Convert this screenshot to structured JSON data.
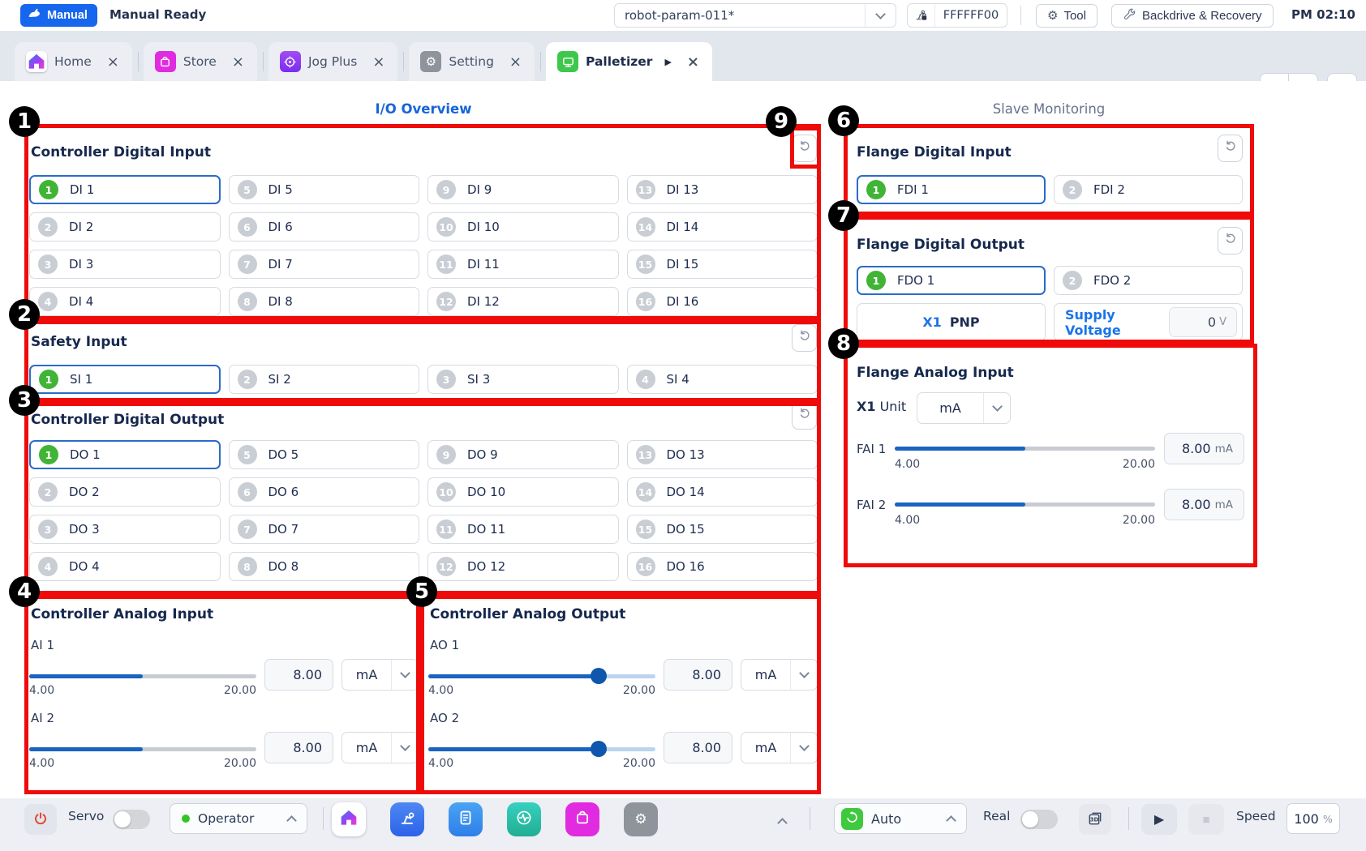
{
  "topbar": {
    "mode": "Manual",
    "status": "Manual Ready",
    "param": "robot-param-011*",
    "device_id": "FFFFFF00",
    "tool": "Tool",
    "backdrive": "Backdrive & Recovery",
    "time": "PM 02:10"
  },
  "tabs": [
    {
      "label": "Home",
      "icon": "home",
      "active": false
    },
    {
      "label": "Store",
      "icon": "store",
      "active": false
    },
    {
      "label": "Jog Plus",
      "icon": "jog",
      "active": false
    },
    {
      "label": "Setting",
      "icon": "gear",
      "active": false
    },
    {
      "label": "Palletizer",
      "icon": "palletizer",
      "active": true
    }
  ],
  "io_overview": {
    "title": "I/O Overview",
    "digital_input": {
      "title": "Controller Digital Input",
      "items": [
        {
          "num": "1",
          "label": "DI 1",
          "on": true,
          "selected": true
        },
        {
          "num": "2",
          "label": "DI 2",
          "on": false,
          "selected": false
        },
        {
          "num": "3",
          "label": "DI 3",
          "on": false,
          "selected": false
        },
        {
          "num": "4",
          "label": "DI 4",
          "on": false,
          "selected": false
        },
        {
          "num": "5",
          "label": "DI 5",
          "on": false,
          "selected": false
        },
        {
          "num": "6",
          "label": "DI 6",
          "on": false,
          "selected": false
        },
        {
          "num": "7",
          "label": "DI 7",
          "on": false,
          "selected": false
        },
        {
          "num": "8",
          "label": "DI 8",
          "on": false,
          "selected": false
        },
        {
          "num": "9",
          "label": "DI 9",
          "on": false,
          "selected": false
        },
        {
          "num": "10",
          "label": "DI 10",
          "on": false,
          "selected": false
        },
        {
          "num": "11",
          "label": "DI 11",
          "on": false,
          "selected": false
        },
        {
          "num": "12",
          "label": "DI 12",
          "on": false,
          "selected": false
        },
        {
          "num": "13",
          "label": "DI 13",
          "on": false,
          "selected": false
        },
        {
          "num": "14",
          "label": "DI 14",
          "on": false,
          "selected": false
        },
        {
          "num": "15",
          "label": "DI 15",
          "on": false,
          "selected": false
        },
        {
          "num": "16",
          "label": "DI 16",
          "on": false,
          "selected": false
        }
      ]
    },
    "safety_input": {
      "title": "Safety Input",
      "items": [
        {
          "num": "1",
          "label": "SI 1",
          "on": true,
          "selected": true
        },
        {
          "num": "2",
          "label": "SI 2",
          "on": false,
          "selected": false
        },
        {
          "num": "3",
          "label": "SI 3",
          "on": false,
          "selected": false
        },
        {
          "num": "4",
          "label": "SI 4",
          "on": false,
          "selected": false
        }
      ]
    },
    "digital_output": {
      "title": "Controller Digital Output",
      "items": [
        {
          "num": "1",
          "label": "DO 1",
          "on": true,
          "selected": true
        },
        {
          "num": "2",
          "label": "DO 2",
          "on": false,
          "selected": false
        },
        {
          "num": "3",
          "label": "DO 3",
          "on": false,
          "selected": false
        },
        {
          "num": "4",
          "label": "DO 4",
          "on": false,
          "selected": false
        },
        {
          "num": "5",
          "label": "DO 5",
          "on": false,
          "selected": false
        },
        {
          "num": "6",
          "label": "DO 6",
          "on": false,
          "selected": false
        },
        {
          "num": "7",
          "label": "DO 7",
          "on": false,
          "selected": false
        },
        {
          "num": "8",
          "label": "DO 8",
          "on": false,
          "selected": false
        },
        {
          "num": "9",
          "label": "DO 9",
          "on": false,
          "selected": false
        },
        {
          "num": "10",
          "label": "DO 10",
          "on": false,
          "selected": false
        },
        {
          "num": "11",
          "label": "DO 11",
          "on": false,
          "selected": false
        },
        {
          "num": "12",
          "label": "DO 12",
          "on": false,
          "selected": false
        },
        {
          "num": "13",
          "label": "DO 13",
          "on": false,
          "selected": false
        },
        {
          "num": "14",
          "label": "DO 14",
          "on": false,
          "selected": false
        },
        {
          "num": "15",
          "label": "DO 15",
          "on": false,
          "selected": false
        },
        {
          "num": "16",
          "label": "DO 16",
          "on": false,
          "selected": false
        }
      ]
    },
    "analog_input": {
      "title": "Controller Analog Input",
      "channels": [
        {
          "label": "AI 1",
          "min": "4.00",
          "max": "20.00",
          "value": "8.00",
          "unit": "mA",
          "fill_pct": 50
        },
        {
          "label": "AI 2",
          "min": "4.00",
          "max": "20.00",
          "value": "8.00",
          "unit": "mA",
          "fill_pct": 50
        }
      ]
    },
    "analog_output": {
      "title": "Controller Analog Output",
      "channels": [
        {
          "label": "AO 1",
          "min": "4.00",
          "max": "20.00",
          "value": "8.00",
          "unit": "mA",
          "fill_pct": 75
        },
        {
          "label": "AO 2",
          "min": "4.00",
          "max": "20.00",
          "value": "8.00",
          "unit": "mA",
          "fill_pct": 75
        }
      ]
    }
  },
  "slave_monitoring": {
    "title": "Slave Monitoring",
    "flange_digital_input": {
      "title": "Flange Digital Input",
      "items": [
        {
          "num": "1",
          "label": "FDI 1",
          "on": true,
          "selected": true
        },
        {
          "num": "2",
          "label": "FDI 2",
          "on": false,
          "selected": false
        }
      ]
    },
    "flange_digital_output": {
      "title": "Flange Digital Output",
      "items": [
        {
          "num": "1",
          "label": "FDO 1",
          "on": true,
          "selected": true
        },
        {
          "num": "2",
          "label": "FDO 2",
          "on": false,
          "selected": false
        }
      ],
      "x1_label": "X1",
      "x1_value": "PNP",
      "supply_label": "Supply Voltage",
      "supply_value": "0",
      "supply_unit": "V"
    },
    "flange_analog_input": {
      "title": "Flange Analog Input",
      "unit_bold": "X1",
      "unit_text": "Unit",
      "unit_value": "mA",
      "channels": [
        {
          "label": "FAI 1",
          "min": "4.00",
          "max": "20.00",
          "value": "8.00",
          "unit": "mA",
          "fill_pct": 50
        },
        {
          "label": "FAI 2",
          "min": "4.00",
          "max": "20.00",
          "value": "8.00",
          "unit": "mA",
          "fill_pct": 50
        }
      ]
    }
  },
  "annotations": [
    "1",
    "2",
    "3",
    "4",
    "5",
    "6",
    "7",
    "8",
    "9"
  ],
  "bottombar": {
    "servo": "Servo",
    "operator": "Operator",
    "auto": "Auto",
    "real": "Real",
    "speed_label": "Speed",
    "speed_value": "100",
    "speed_unit": "%",
    "view3d": "3D"
  },
  "glyphs": {
    "close": "×",
    "play_tab": "▶",
    "play": "▶",
    "stop": "■",
    "gear": "⚙"
  }
}
